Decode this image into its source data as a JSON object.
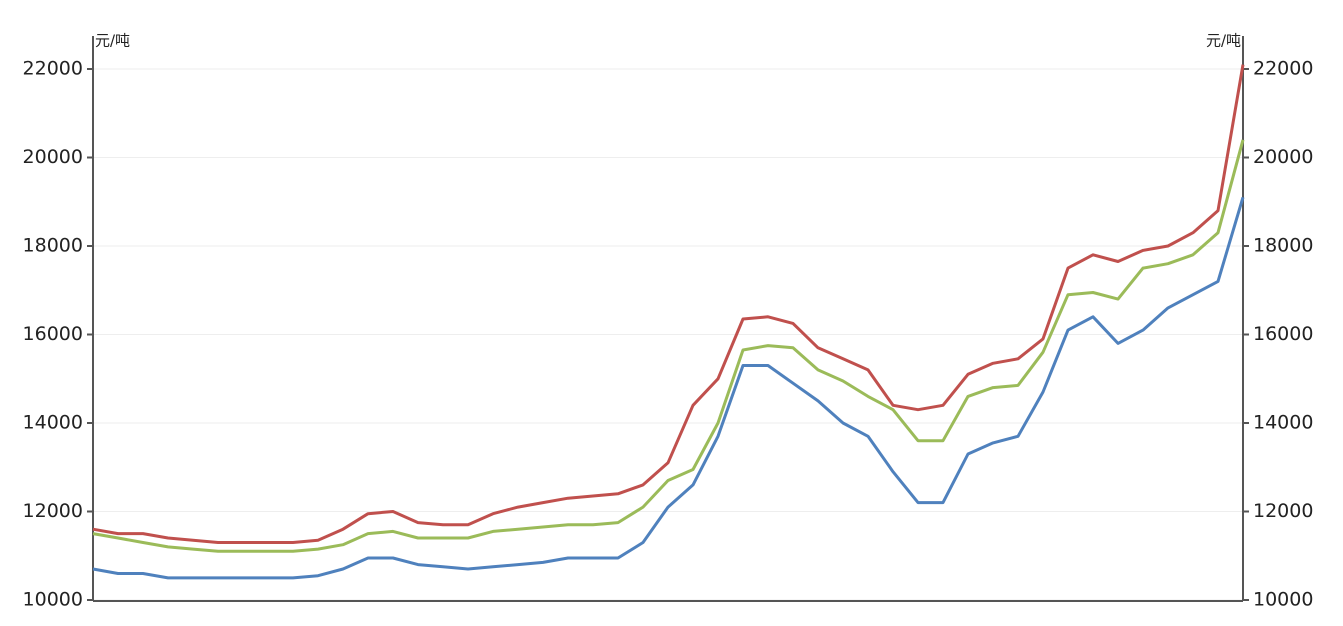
{
  "chart_data": {
    "type": "line",
    "y_unit_left": "元/吨",
    "y_unit_right": "元/吨",
    "categories": [
      null,
      null,
      null,
      null,
      null,
      null,
      null,
      null,
      null,
      null,
      null,
      null,
      null,
      null,
      null,
      null,
      null,
      null,
      null,
      null,
      null,
      null,
      null,
      null,
      null,
      null,
      null,
      null,
      null,
      null,
      null,
      null,
      null,
      null,
      null,
      null,
      null,
      null,
      null,
      null,
      null,
      null,
      null,
      null,
      null,
      null,
      null
    ],
    "series": [
      {
        "color": "#c0504d",
        "values": [
          11600,
          11500,
          11500,
          11400,
          11350,
          11300,
          11300,
          11300,
          11300,
          11350,
          11600,
          11950,
          12000,
          11750,
          11700,
          11700,
          11950,
          12100,
          12200,
          12300,
          12350,
          12400,
          12600,
          13100,
          14400,
          15000,
          16350,
          16400,
          16250,
          15700,
          15450,
          15200,
          14400,
          14300,
          14400,
          15100,
          15350,
          15450,
          15900,
          17500,
          17800,
          17650,
          17900,
          18000,
          18300,
          18800,
          22100
        ]
      },
      {
        "color": "#9bbb59",
        "values": [
          11500,
          11400,
          11300,
          11200,
          11150,
          11100,
          11100,
          11100,
          11100,
          11150,
          11250,
          11500,
          11550,
          11400,
          11400,
          11400,
          11550,
          11600,
          11650,
          11700,
          11700,
          11750,
          12100,
          12700,
          12950,
          14000,
          15650,
          15750,
          15700,
          15200,
          14950,
          14600,
          14300,
          13600,
          13600,
          14600,
          14800,
          14850,
          15600,
          16900,
          16950,
          16800,
          17500,
          17600,
          17800,
          18300,
          20400
        ]
      },
      {
        "color": "#4f81bd",
        "values": [
          10700,
          10600,
          10600,
          10500,
          10500,
          10500,
          10500,
          10500,
          10500,
          10550,
          10700,
          10950,
          10950,
          10800,
          10750,
          10700,
          10750,
          10800,
          10850,
          10950,
          10950,
          10950,
          11300,
          12100,
          12600,
          13700,
          15300,
          15300,
          14900,
          14500,
          14000,
          13700,
          12900,
          12200,
          12200,
          13300,
          13550,
          13700,
          14700,
          16100,
          16400,
          15800,
          16100,
          16600,
          16900,
          17200,
          19100
        ]
      }
    ],
    "ylim": [
      10000,
      22000
    ],
    "yticks": [
      10000,
      12000,
      14000,
      16000,
      18000,
      20000,
      22000
    ],
    "y2lim": [
      10000,
      22000
    ],
    "y2ticks": [
      10000,
      12000,
      14000,
      16000,
      18000,
      20000,
      22000
    ],
    "grid": true
  }
}
